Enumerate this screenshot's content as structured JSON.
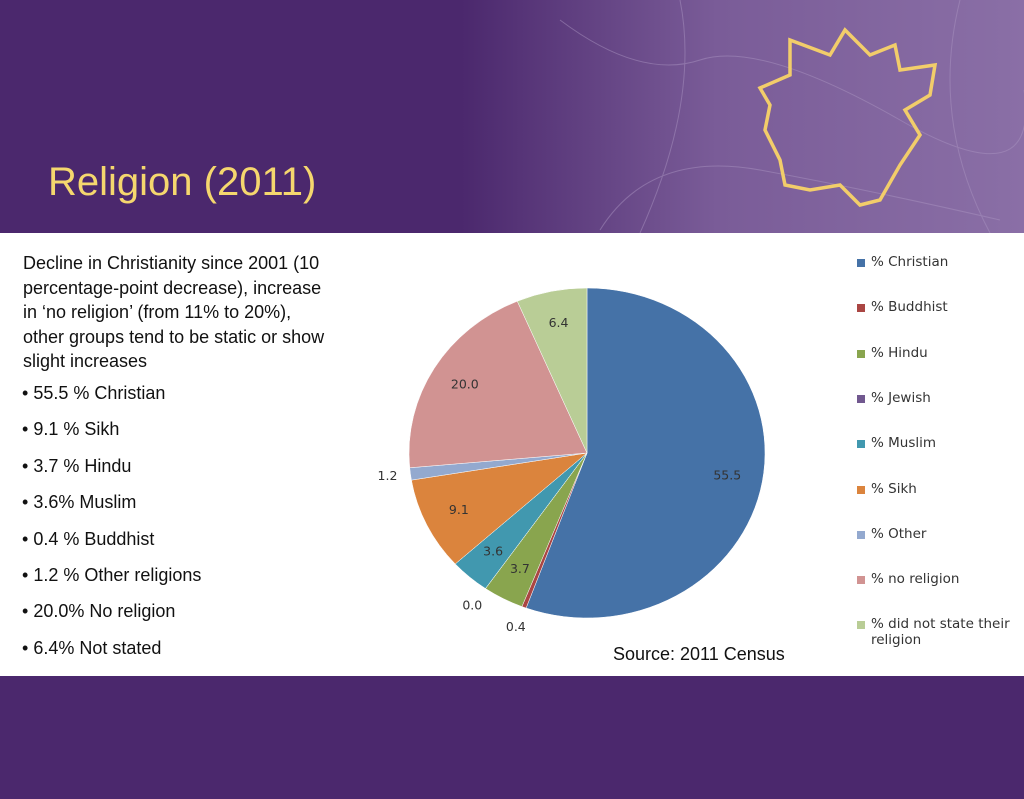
{
  "title": "Religion (2011)",
  "intro": "Decline in Christianity since 2001 (10 percentage-point decrease), increase in ‘no religion’ (from 11% to 20%), other groups tend to be static or show slight increases",
  "bullets": [
    "55.5 % Christian",
    "9.1 % Sikh",
    "3.7 % Hindu",
    "3.6% Muslim",
    "0.4 % Buddhist",
    "1.2 % Other religions",
    "20.0% No religion",
    "6.4% Not stated"
  ],
  "source": "Source: 2011 Census",
  "chart_data": {
    "type": "pie",
    "categories": [
      "% Christian",
      "% Buddhist",
      "% Hindu",
      "% Jewish",
      "% Muslim",
      "% Sikh",
      "% Other",
      "% no religion",
      "% did not state their religion"
    ],
    "values": [
      55.5,
      0.4,
      3.7,
      0.0,
      3.6,
      9.1,
      1.2,
      20.0,
      6.4
    ],
    "value_labels": [
      "55.5",
      "0.4",
      "3.7",
      "0.0",
      "3.6",
      "9.1",
      "1.2",
      "20.0",
      "6.4"
    ],
    "colors": [
      "#4572a7",
      "#aa4643",
      "#89a54e",
      "#71588f",
      "#4198af",
      "#db843d",
      "#93a9cf",
      "#d19392",
      "#b9cd96"
    ],
    "legend": "right"
  }
}
